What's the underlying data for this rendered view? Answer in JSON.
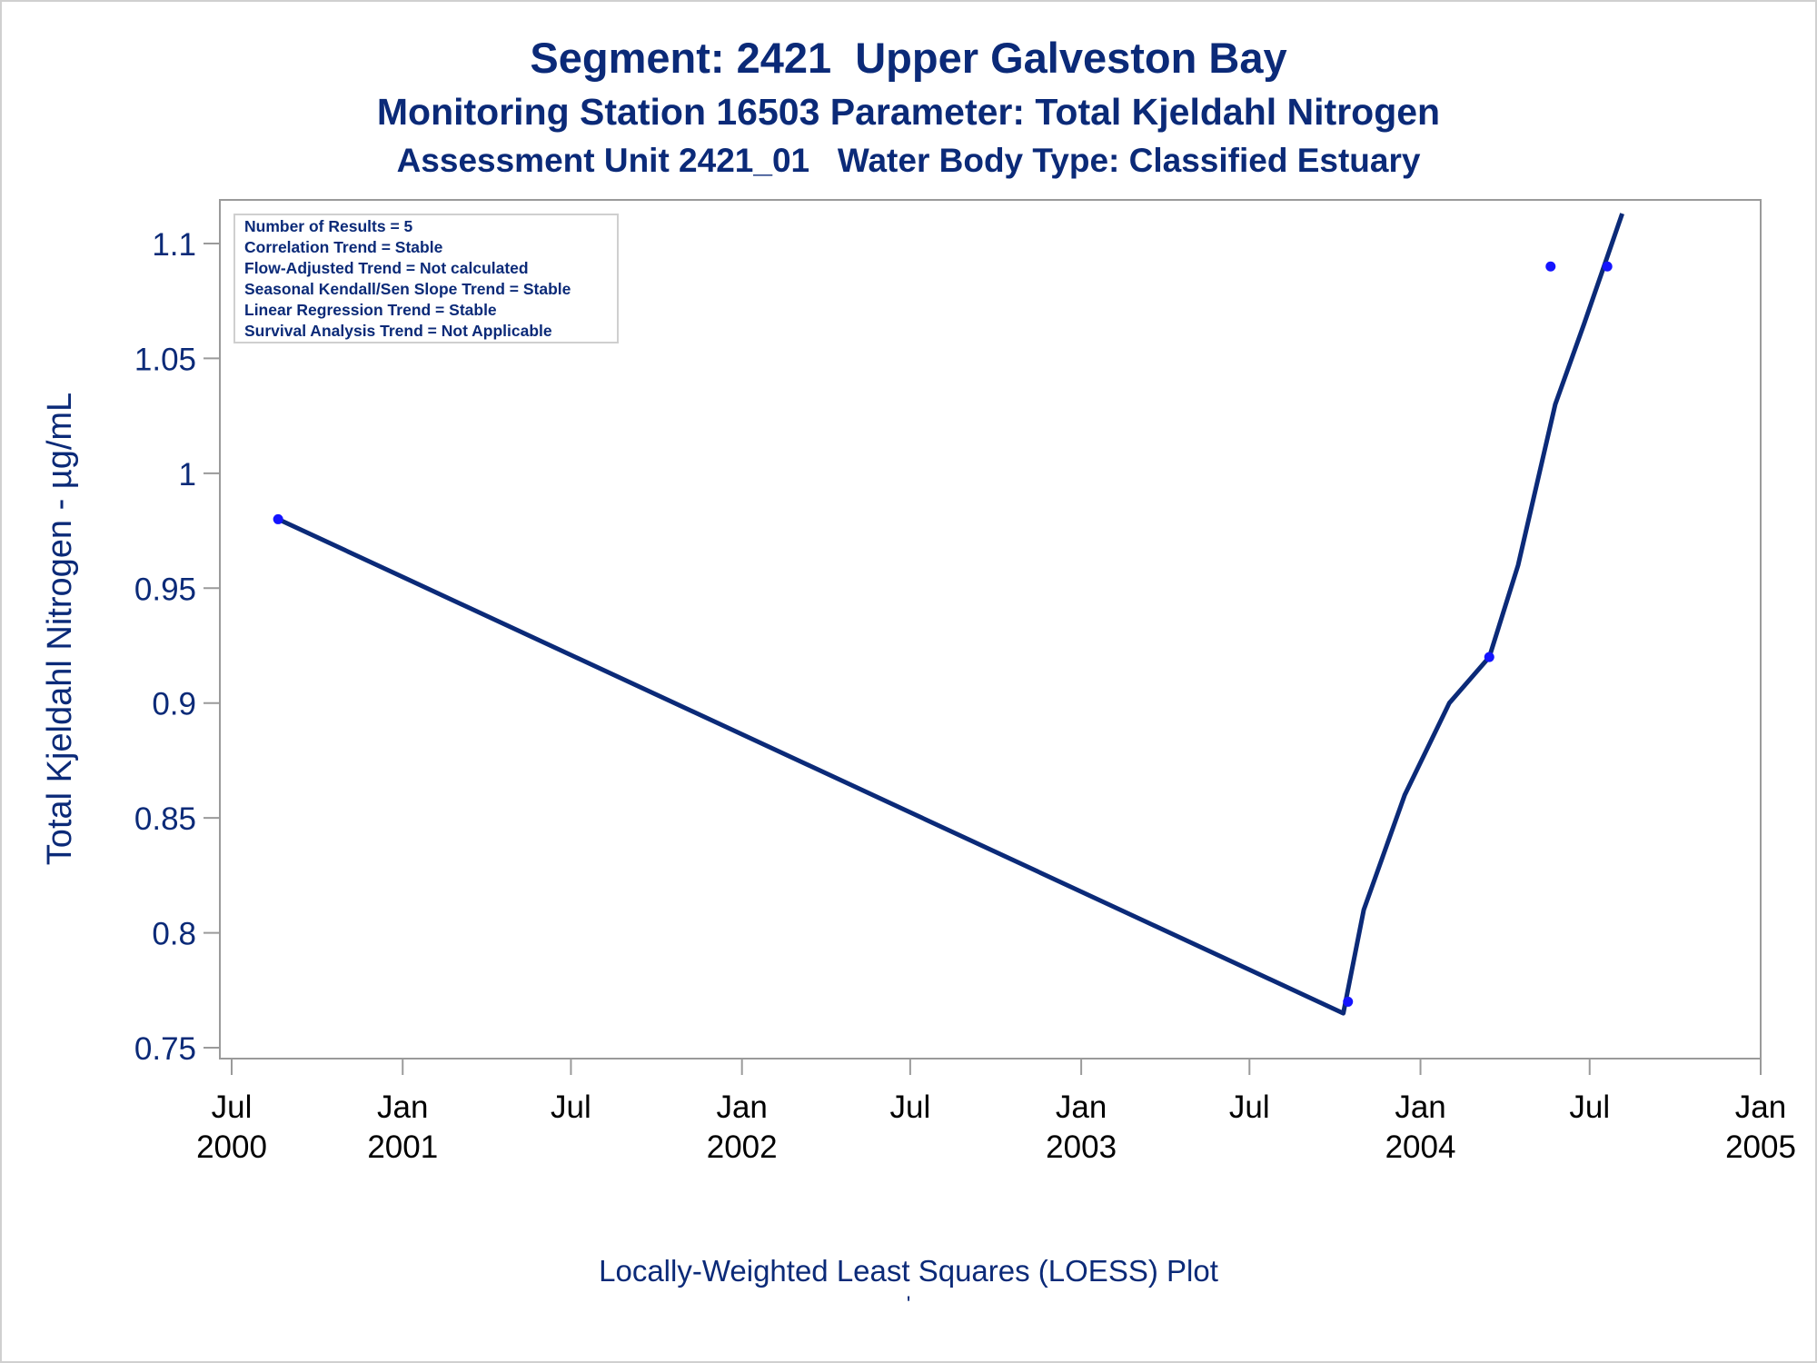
{
  "titles": {
    "line1": "Segment: 2421  Upper Galveston Bay",
    "line2": "Monitoring Station 16503 Parameter: Total Kjeldahl Nitrogen",
    "line3": "Assessment Unit 2421_01   Water Body Type: Classified Estuary"
  },
  "footnote": "Locally-Weighted Least Squares (LOESS) Plot",
  "footnote_mark": "'",
  "colors": {
    "text": "#0b2a78",
    "line": "#0b2a78",
    "points": "#1414ff",
    "axis": "#9a9a9a",
    "legend_border": "#cfcfcf"
  },
  "chart_data": {
    "type": "scatter",
    "ylabel": "Total Kjeldahl Nitrogen -  µg/mL",
    "xlabel": "",
    "ylim": [
      0.75,
      1.12
    ],
    "xlim": [
      "2000-07-01",
      "2005-01-01"
    ],
    "yscale": "linear",
    "grid": false,
    "y_ticks": [
      {
        "value": 0.75,
        "label": "0.75"
      },
      {
        "value": 0.8,
        "label": "0.8"
      },
      {
        "value": 0.85,
        "label": "0.85"
      },
      {
        "value": 0.9,
        "label": "0.9"
      },
      {
        "value": 0.95,
        "label": "0.95"
      },
      {
        "value": 1.0,
        "label": "1"
      },
      {
        "value": 1.05,
        "label": "1.05"
      },
      {
        "value": 1.1,
        "label": "1.1"
      }
    ],
    "x_ticks": [
      {
        "date": "2000-07-01",
        "line1": "Jul",
        "line2": "2000"
      },
      {
        "date": "2001-01-01",
        "line1": "Jan",
        "line2": "2001"
      },
      {
        "date": "2001-07-01",
        "line1": "Jul",
        "line2": ""
      },
      {
        "date": "2002-01-01",
        "line1": "Jan",
        "line2": "2002"
      },
      {
        "date": "2002-07-01",
        "line1": "Jul",
        "line2": ""
      },
      {
        "date": "2003-01-01",
        "line1": "Jan",
        "line2": "2003"
      },
      {
        "date": "2003-07-01",
        "line1": "Jul",
        "line2": ""
      },
      {
        "date": "2004-01-01",
        "line1": "Jan",
        "line2": "2004"
      },
      {
        "date": "2004-07-01",
        "line1": "Jul",
        "line2": ""
      },
      {
        "date": "2005-01-01",
        "line1": "Jan",
        "line2": "2005"
      }
    ],
    "points": [
      {
        "x": "2000-08-20",
        "y": 0.98
      },
      {
        "x": "2003-10-15",
        "y": 0.77
      },
      {
        "x": "2004-03-15",
        "y": 0.92
      },
      {
        "x": "2004-05-20",
        "y": 1.09
      },
      {
        "x": "2004-07-20",
        "y": 1.09
      }
    ],
    "series": [
      {
        "type": "line",
        "values": [
          {
            "x": "2000-08-20",
            "y": 0.98
          },
          {
            "x": "2003-10-10",
            "y": 0.765
          },
          {
            "x": "2003-11-01",
            "y": 0.81
          },
          {
            "x": "2003-12-15",
            "y": 0.86
          },
          {
            "x": "2004-02-01",
            "y": 0.9
          },
          {
            "x": "2004-03-15",
            "y": 0.92
          },
          {
            "x": "2004-04-15",
            "y": 0.96
          },
          {
            "x": "2004-05-25",
            "y": 1.03
          },
          {
            "x": "2004-06-25",
            "y": 1.065
          },
          {
            "x": "2004-08-05",
            "y": 1.113
          }
        ]
      }
    ],
    "annotations": [
      "Number of Results = 5",
      "Correlation Trend = Stable",
      "Flow-Adjusted Trend = Not calculated",
      "Seasonal Kendall/Sen Slope Trend = Stable",
      "Linear Regression Trend = Stable",
      "Survival Analysis Trend = Not Applicable"
    ]
  }
}
